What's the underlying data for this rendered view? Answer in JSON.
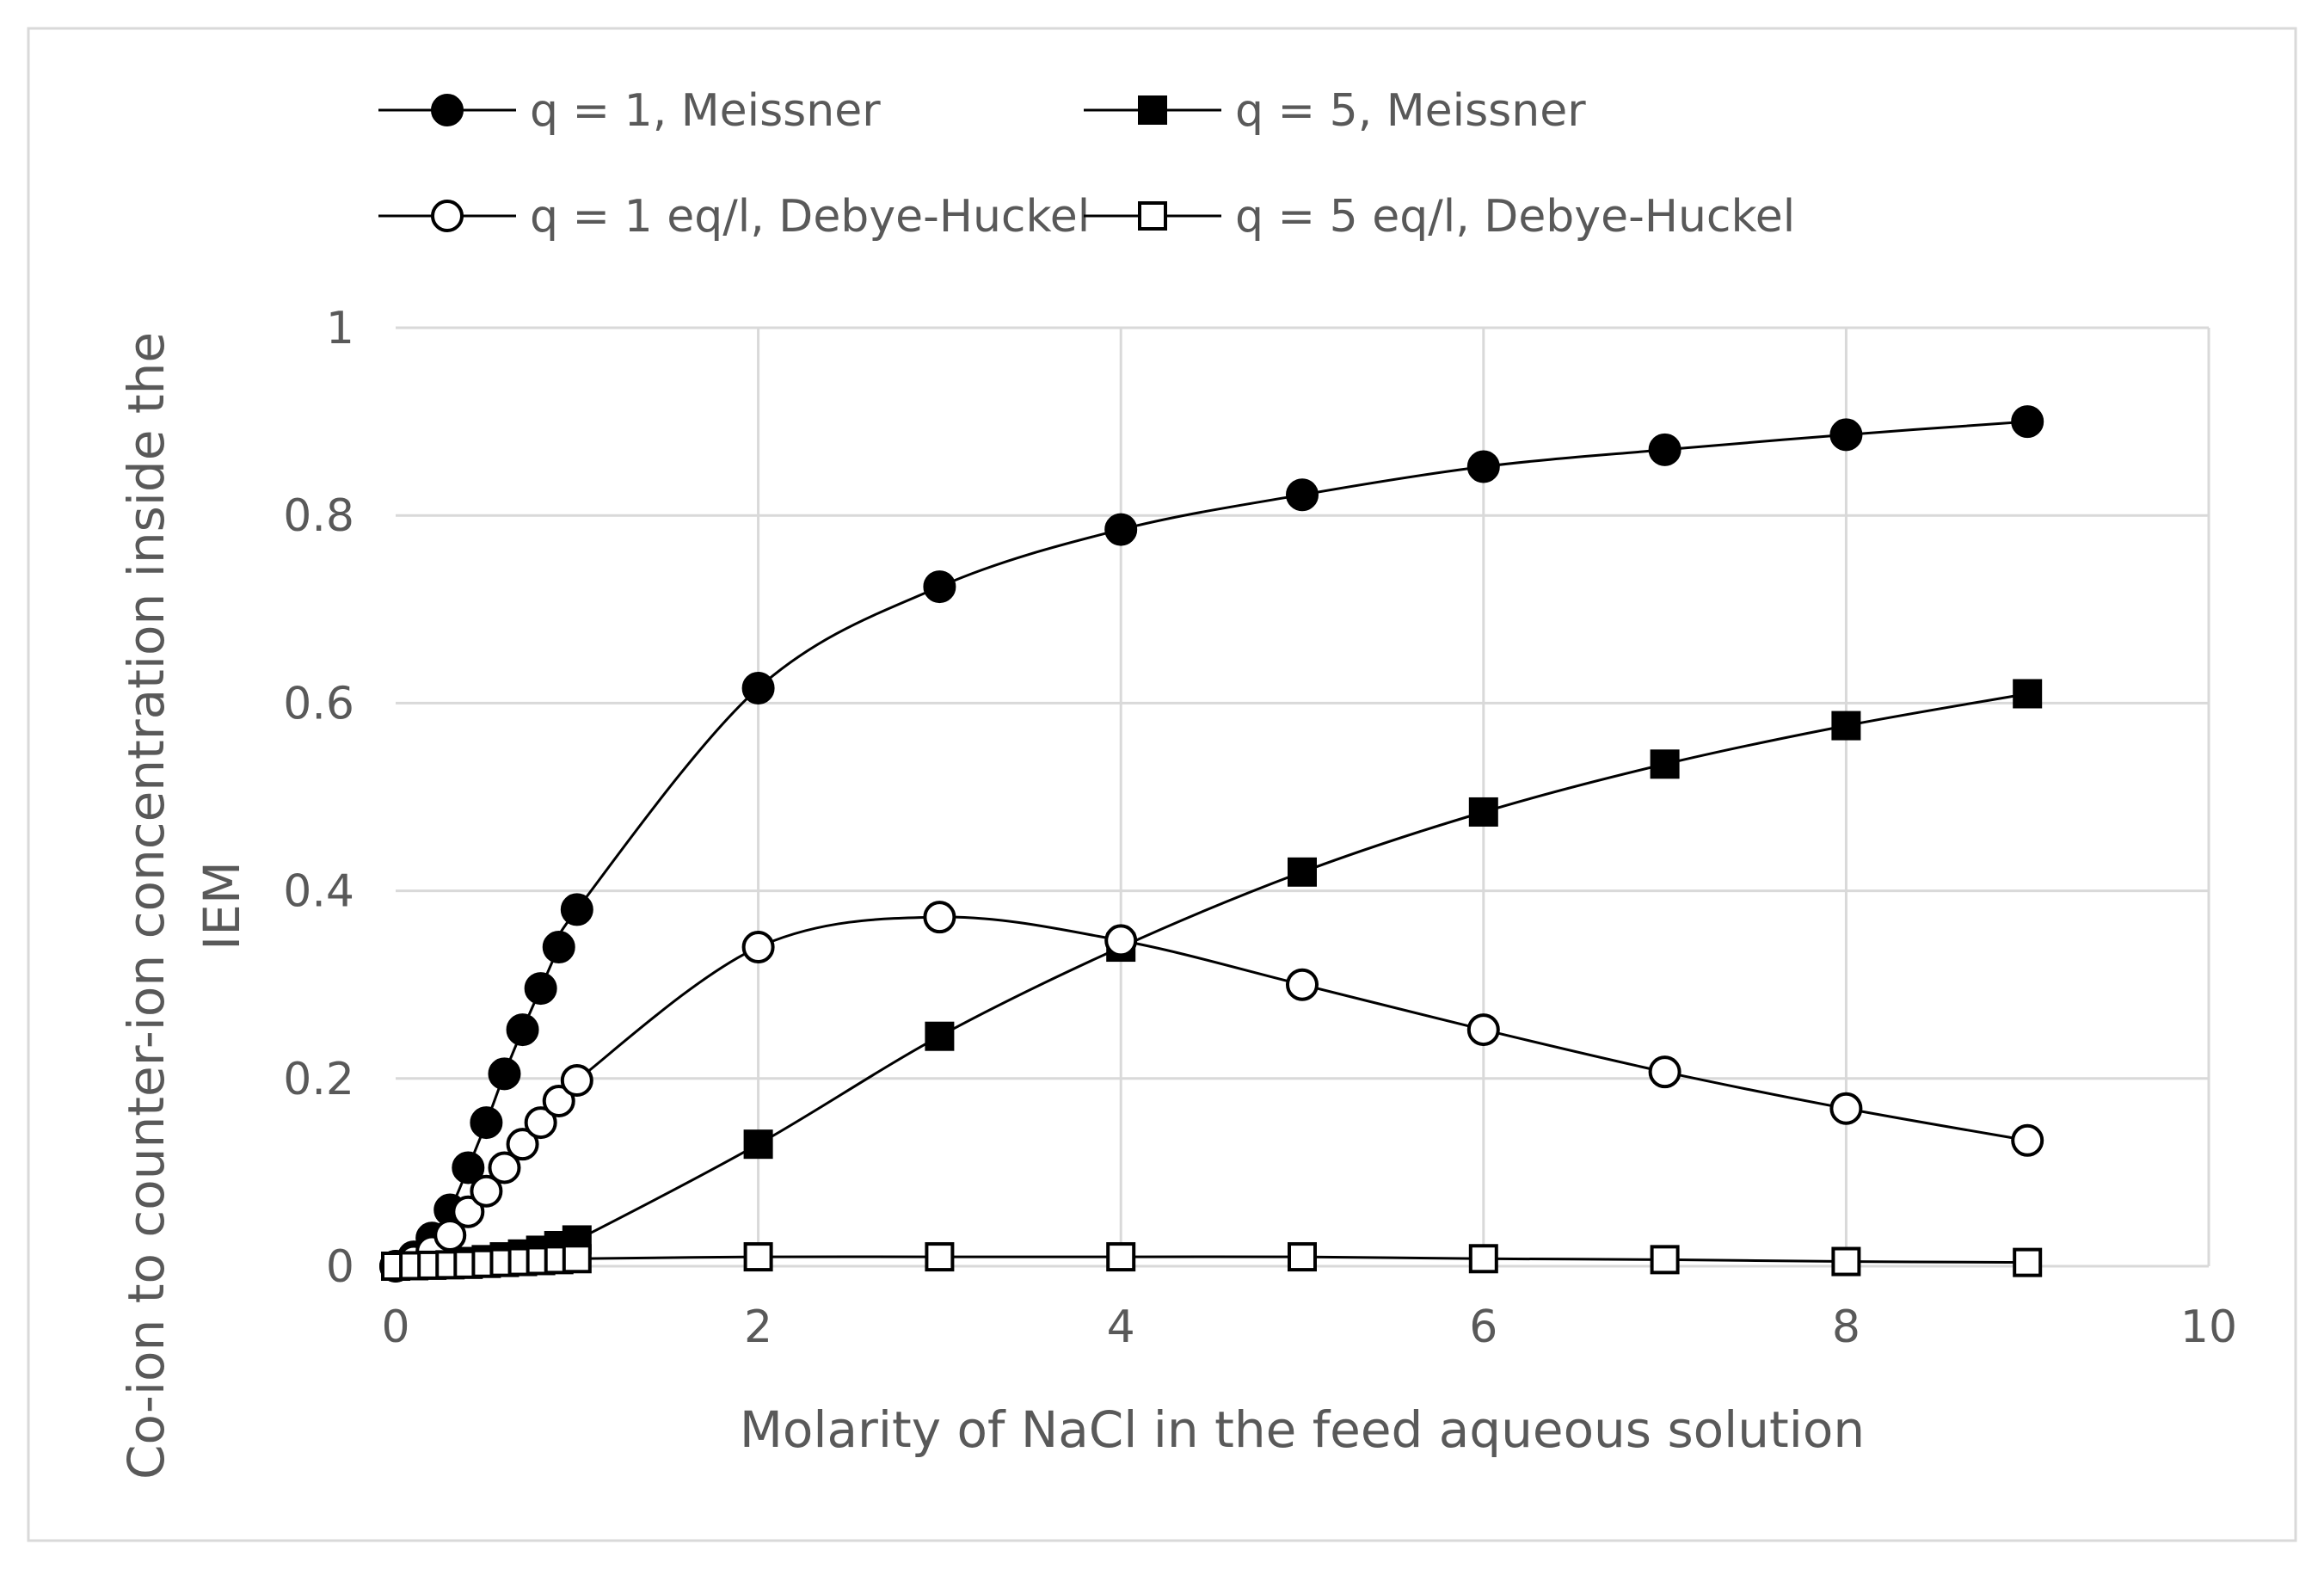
{
  "chart_data": {
    "type": "scatter",
    "title": "",
    "xlabel": "Molarity of NaCl in the feed aqueous solution",
    "ylabel": "Co-ion to counter-ion concentration inside the IEM",
    "xlim": [
      0,
      10
    ],
    "ylim": [
      0,
      1
    ],
    "xticks": [
      "0",
      "2",
      "4",
      "6",
      "8",
      "10"
    ],
    "yticks": [
      "0",
      "0.2",
      "0.4",
      "0.6",
      "0.8",
      "1"
    ],
    "grid": true,
    "legend_position": "top",
    "series": [
      {
        "name": "q = 1, Meissner",
        "marker": "circle-filled",
        "x": [
          0,
          0.1,
          0.2,
          0.3,
          0.4,
          0.5,
          0.6,
          0.7,
          0.8,
          0.9,
          1,
          2,
          3,
          4,
          5,
          6,
          7,
          8,
          9
        ],
        "y": [
          0,
          0.01,
          0.03,
          0.06,
          0.105,
          0.153,
          0.205,
          0.252,
          0.296,
          0.34,
          0.38,
          0.616,
          0.724,
          0.785,
          0.822,
          0.852,
          0.87,
          0.886,
          0.9
        ]
      },
      {
        "name": "q = 5, Meissner",
        "marker": "square-filled",
        "x": [
          0,
          0.1,
          0.2,
          0.3,
          0.4,
          0.5,
          0.6,
          0.7,
          0.8,
          0.9,
          1,
          2,
          3,
          4,
          5,
          6,
          7,
          8,
          9
        ],
        "y": [
          0,
          0.001,
          0.002,
          0.003,
          0.005,
          0.007,
          0.01,
          0.013,
          0.017,
          0.022,
          0.028,
          0.13,
          0.245,
          0.34,
          0.42,
          0.484,
          0.535,
          0.576,
          0.61
        ]
      },
      {
        "name": "q = 1 eq/l, Debye-Huckel",
        "marker": "circle-open",
        "x": [
          0,
          0.1,
          0.2,
          0.3,
          0.4,
          0.5,
          0.6,
          0.7,
          0.8,
          0.9,
          1,
          2,
          3,
          4,
          5,
          6,
          7,
          8,
          9
        ],
        "y": [
          0,
          0.006,
          0.016,
          0.033,
          0.058,
          0.08,
          0.105,
          0.13,
          0.153,
          0.176,
          0.198,
          0.34,
          0.372,
          0.347,
          0.3,
          0.252,
          0.207,
          0.168,
          0.134
        ]
      },
      {
        "name": "q = 5 eq/l, Debye-Huckel",
        "marker": "square-open",
        "x": [
          0,
          0.1,
          0.2,
          0.3,
          0.4,
          0.5,
          0.6,
          0.7,
          0.8,
          0.9,
          1,
          2,
          3,
          4,
          5,
          6,
          7,
          8,
          9
        ],
        "y": [
          0,
          0.0005,
          0.001,
          0.0015,
          0.002,
          0.003,
          0.004,
          0.005,
          0.006,
          0.007,
          0.008,
          0.01,
          0.01,
          0.01,
          0.01,
          0.008,
          0.007,
          0.005,
          0.004
        ]
      }
    ]
  }
}
